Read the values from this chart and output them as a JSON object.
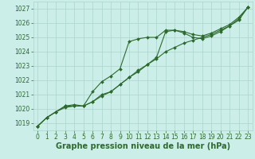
{
  "x": [
    0,
    1,
    2,
    3,
    4,
    5,
    6,
    7,
    8,
    9,
    10,
    11,
    12,
    13,
    14,
    15,
    16,
    17,
    18,
    19,
    20,
    21,
    22,
    23
  ],
  "line1": [
    1018.8,
    1019.4,
    1019.8,
    1020.1,
    1020.2,
    1020.2,
    1020.5,
    1020.9,
    1021.2,
    1021.7,
    1022.2,
    1022.6,
    1023.1,
    1023.5,
    1024.0,
    1024.3,
    1024.6,
    1024.8,
    1025.0,
    1025.2,
    1025.5,
    1025.8,
    1026.2,
    1027.1
  ],
  "line2": [
    1018.8,
    1019.4,
    1019.8,
    1020.2,
    1020.2,
    1020.2,
    1021.2,
    1021.9,
    1022.3,
    1022.8,
    1024.7,
    1024.9,
    1025.0,
    1025.0,
    1025.5,
    1025.5,
    1025.3,
    1025.0,
    1024.9,
    1025.1,
    1025.4,
    1025.8,
    1026.3,
    1027.1
  ],
  "line3": [
    1018.8,
    1019.4,
    1019.8,
    1020.2,
    1020.3,
    1020.2,
    1020.5,
    1021.0,
    1021.2,
    1021.7,
    1022.2,
    1022.7,
    1023.1,
    1023.6,
    1025.4,
    1025.5,
    1025.4,
    1025.2,
    1025.1,
    1025.3,
    1025.6,
    1025.9,
    1026.4,
    1027.1
  ],
  "line_color": "#2d6a2d",
  "bg_color": "#cceee8",
  "grid_color": "#aad4cc",
  "xlabel": "Graphe pression niveau de la mer (hPa)",
  "ylim": [
    1018.5,
    1027.5
  ],
  "xlim": [
    -0.5,
    23.5
  ],
  "yticks": [
    1019,
    1020,
    1021,
    1022,
    1023,
    1024,
    1025,
    1026,
    1027
  ],
  "xticks": [
    0,
    1,
    2,
    3,
    4,
    5,
    6,
    7,
    8,
    9,
    10,
    11,
    12,
    13,
    14,
    15,
    16,
    17,
    18,
    19,
    20,
    21,
    22,
    23
  ],
  "tick_fontsize": 5.5,
  "xlabel_fontsize": 7.0,
  "marker": "D",
  "marker_size": 2.0,
  "line_width": 0.8
}
